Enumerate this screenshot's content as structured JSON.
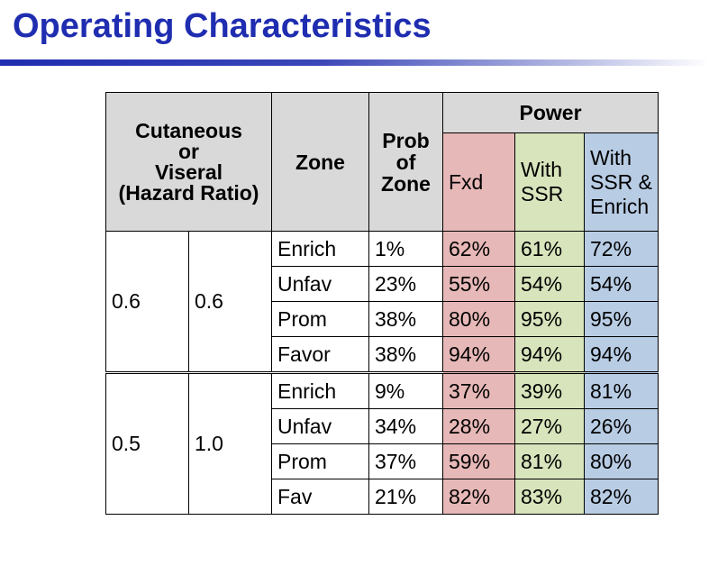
{
  "slide": {
    "title": "Operating Characteristics"
  },
  "table": {
    "headers": {
      "hazard": [
        "Cutaneous",
        "or",
        "Viseral",
        "(Hazard Ratio)"
      ],
      "zone": "Zone",
      "prob": [
        "Prob",
        "of",
        "Zone"
      ],
      "power": "Power",
      "fxd": "Fxd",
      "with_ssr": [
        "With",
        "SSR"
      ],
      "with_ssr_enrich": [
        "With",
        "SSR &",
        "Enrich"
      ]
    },
    "groups": [
      {
        "cutaneous": "0.6",
        "viseral": "0.6",
        "rows": [
          {
            "zone": "Enrich",
            "prob": "1%",
            "fxd": "62%",
            "ssr": "61%",
            "enrich": "72%"
          },
          {
            "zone": "Unfav",
            "prob": "23%",
            "fxd": "55%",
            "ssr": "54%",
            "enrich": "54%"
          },
          {
            "zone": "Prom",
            "prob": "38%",
            "fxd": "80%",
            "ssr": "95%",
            "enrich": "95%"
          },
          {
            "zone": "Favor",
            "prob": "38%",
            "fxd": "94%",
            "ssr": "94%",
            "enrich": "94%"
          }
        ]
      },
      {
        "cutaneous": "0.5",
        "viseral": "1.0",
        "rows": [
          {
            "zone": "Enrich",
            "prob": "9%",
            "fxd": "37%",
            "ssr": "39%",
            "enrich": "81%"
          },
          {
            "zone": "Unfav",
            "prob": "34%",
            "fxd": "28%",
            "ssr": "27%",
            "enrich": "26%"
          },
          {
            "zone": "Prom",
            "prob": "37%",
            "fxd": "59%",
            "ssr": "81%",
            "enrich": "80%"
          },
          {
            "zone": "Fav",
            "prob": "21%",
            "fxd": "82%",
            "ssr": "83%",
            "enrich": "82%"
          }
        ]
      }
    ]
  }
}
